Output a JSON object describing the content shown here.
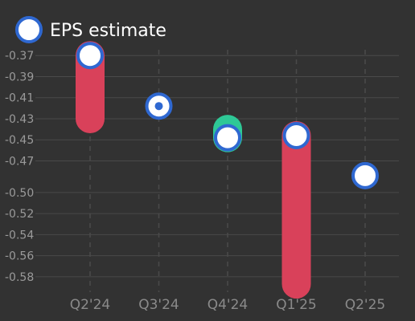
{
  "colors": {
    "background": "#323232",
    "grid": "#4a4a4a",
    "tick_text": "#9a9a9a",
    "category_text": "#8a8a8a",
    "legend_text": "#ffffff",
    "estimate_fill": "#ffffff",
    "estimate_stroke": "#2f68d1",
    "miss": "#d9415a",
    "beat": "#2ec896"
  },
  "legend": {
    "label": "EPS estimate"
  },
  "chart_data": {
    "type": "scatter",
    "categories": [
      "Q2'24",
      "Q3'24",
      "Q4'24",
      "Q1'25",
      "Q2'25"
    ],
    "ylim": [
      -0.59,
      -0.363
    ],
    "y_ticks": [
      -0.37,
      -0.39,
      -0.41,
      -0.43,
      -0.45,
      -0.47,
      -0.5,
      -0.52,
      -0.54,
      -0.56,
      -0.58
    ],
    "y_tick_labels": [
      "-0.37",
      "-0.39",
      "-0.41",
      "-0.43",
      "-0.45",
      "-0.47",
      "-0.50",
      "-0.52",
      "-0.54",
      "-0.56",
      "-0.58"
    ],
    "grid": true,
    "legend_position": "top-left",
    "series": [
      {
        "name": "EPS estimate",
        "values": [
          -0.37,
          -0.418,
          -0.448,
          -0.446,
          -0.484
        ]
      }
    ],
    "actuals": [
      -0.43,
      -0.418,
      -0.44,
      -0.587,
      null
    ]
  }
}
